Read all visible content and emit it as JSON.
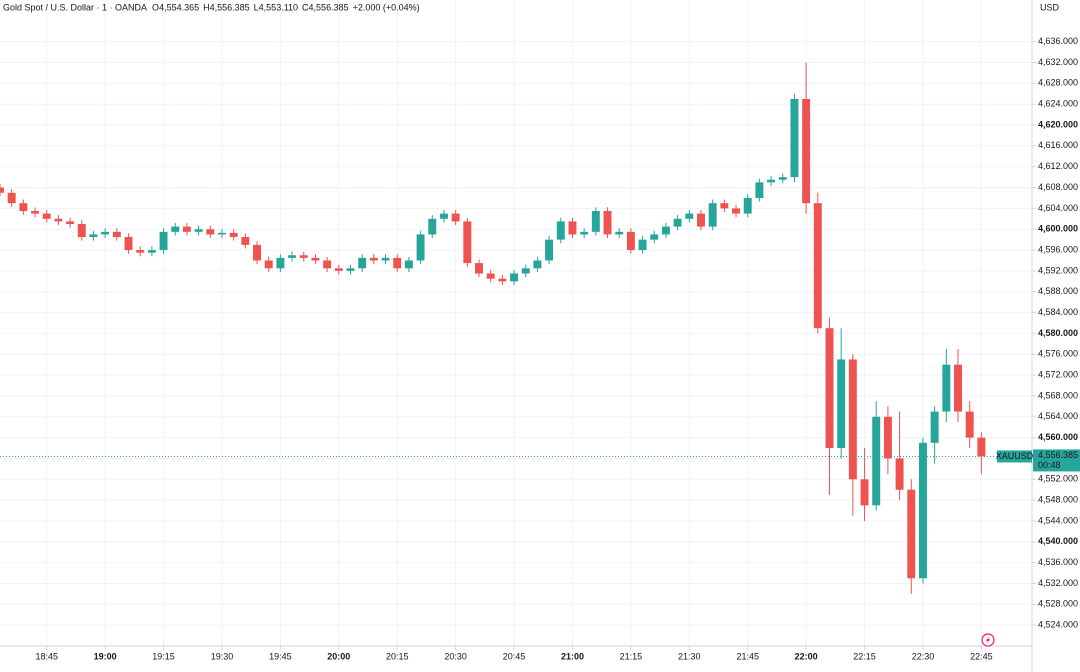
{
  "chart_data": {
    "type": "candlestick",
    "legend": {
      "symbol": "Gold Spot / U.S. Dollar · 1 · OANDA",
      "open_label": "O",
      "open": "4,554.365",
      "high_label": "H",
      "high": "4,556.385",
      "low_label": "L",
      "low": "4,553.110",
      "close_label": "C",
      "close": "4,556.385",
      "change": "+2.000 (+0.04%)"
    },
    "currency": "USD",
    "price_tag": {
      "symbol": "XAUUSD",
      "price": 4556.385,
      "price_label": "4,556.385",
      "countdown": "00:48"
    },
    "up_color": "#26a69a",
    "down_color": "#ef5350",
    "xlim": [
      "18:33",
      "22:58"
    ],
    "ylim": [
      4520,
      4644
    ],
    "xticks": [
      "18:45",
      "19:00",
      "19:15",
      "19:30",
      "19:45",
      "20:00",
      "20:15",
      "20:30",
      "20:45",
      "21:00",
      "21:15",
      "21:30",
      "21:45",
      "22:00",
      "22:15",
      "22:30",
      "22:45"
    ],
    "yticks": [
      {
        "value": 4524,
        "label": "4,524.000"
      },
      {
        "value": 4528,
        "label": "4,528.000"
      },
      {
        "value": 4532,
        "label": "4,532.000"
      },
      {
        "value": 4536,
        "label": "4,536.000"
      },
      {
        "value": 4540,
        "label": "4,540.000"
      },
      {
        "value": 4544,
        "label": "4,544.000"
      },
      {
        "value": 4548,
        "label": "4,548.000"
      },
      {
        "value": 4552,
        "label": "4,552.000"
      },
      {
        "value": 4556,
        "label": "4,556.000"
      },
      {
        "value": 4560,
        "label": "4,560.000"
      },
      {
        "value": 4564,
        "label": "4,564.000"
      },
      {
        "value": 4568,
        "label": "4,568.000"
      },
      {
        "value": 4572,
        "label": "4,572.000"
      },
      {
        "value": 4576,
        "label": "4,576.000"
      },
      {
        "value": 4580,
        "label": "4,580.000"
      },
      {
        "value": 4584,
        "label": "4,584.000"
      },
      {
        "value": 4588,
        "label": "4,588.000"
      },
      {
        "value": 4592,
        "label": "4,592.000"
      },
      {
        "value": 4596,
        "label": "4,596.000"
      },
      {
        "value": 4600,
        "label": "4,600.000"
      },
      {
        "value": 4604,
        "label": "4,604.000"
      },
      {
        "value": 4608,
        "label": "4,608.000"
      },
      {
        "value": 4612,
        "label": "4,612.000"
      },
      {
        "value": 4616,
        "label": "4,616.000"
      },
      {
        "value": 4620,
        "label": "4,620.000"
      },
      {
        "value": 4624,
        "label": "4,624.000"
      },
      {
        "value": 4628,
        "label": "4,628.000"
      },
      {
        "value": 4632,
        "label": "4,632.000"
      },
      {
        "value": 4636,
        "label": "4,636.000"
      }
    ],
    "grid": true,
    "x": [
      "18:33",
      "18:36",
      "18:39",
      "18:42",
      "18:45",
      "18:48",
      "18:51",
      "18:54",
      "18:57",
      "19:00",
      "19:03",
      "19:06",
      "19:09",
      "19:12",
      "19:15",
      "19:18",
      "19:21",
      "19:24",
      "19:27",
      "19:30",
      "19:33",
      "19:36",
      "19:39",
      "19:42",
      "19:45",
      "19:48",
      "19:51",
      "19:54",
      "19:57",
      "20:00",
      "20:03",
      "20:06",
      "20:09",
      "20:12",
      "20:15",
      "20:18",
      "20:21",
      "20:24",
      "20:27",
      "20:30",
      "20:33",
      "20:36",
      "20:39",
      "20:42",
      "20:45",
      "20:48",
      "20:51",
      "20:54",
      "20:57",
      "21:00",
      "21:03",
      "21:06",
      "21:09",
      "21:12",
      "21:15",
      "21:18",
      "21:21",
      "21:24",
      "21:27",
      "21:30",
      "21:33",
      "21:36",
      "21:39",
      "21:42",
      "21:45",
      "21:48",
      "21:51",
      "21:54",
      "21:57",
      "22:00",
      "22:03",
      "22:06",
      "22:09",
      "22:12",
      "22:15",
      "22:18",
      "22:21",
      "22:24",
      "22:27",
      "22:30",
      "22:33",
      "22:36",
      "22:39",
      "22:42",
      "22:45"
    ],
    "open": [
      4608,
      4607,
      4605,
      4603.5,
      4603,
      4602,
      4601.5,
      4601,
      4598.5,
      4599,
      4599.5,
      4598.5,
      4596,
      4595.5,
      4596,
      4599.5,
      4600.5,
      4599.5,
      4600,
      4599,
      4599.3,
      4598.5,
      4597,
      4594,
      4592.5,
      4594.5,
      4595,
      4594.5,
      4594,
      4592.5,
      4592,
      4592.5,
      4594.5,
      4594,
      4594.5,
      4592.5,
      4594,
      4599,
      4602,
      4603,
      4601.5,
      4593.5,
      4591.5,
      4590.5,
      4590,
      4591.5,
      4592.5,
      4594,
      4598,
      4601.5,
      4599,
      4599.5,
      4603.5,
      4599,
      4599.5,
      4596,
      4598,
      4599,
      4600.5,
      4602,
      4603,
      4600.5,
      4605,
      4604,
      4603,
      4606,
      4609,
      4609.5,
      4610,
      4625,
      4605,
      4581,
      4558,
      4575,
      4552,
      4547,
      4564,
      4556,
      4550,
      4533,
      4559,
      4565,
      4574,
      4565,
      4560
    ],
    "high": [
      4608.7,
      4607.7,
      4605.7,
      4604.2,
      4603.7,
      4602.7,
      4602.2,
      4601.7,
      4599.7,
      4600.2,
      4600.2,
      4599.2,
      4596.7,
      4596.7,
      4600.2,
      4601.2,
      4601.2,
      4600.7,
      4600.7,
      4600,
      4600,
      4599.2,
      4597.7,
      4594.7,
      4595.2,
      4595.7,
      4595.7,
      4595.2,
      4594.7,
      4593.2,
      4593.2,
      4595.2,
      4595.2,
      4595.2,
      4595.2,
      4594.7,
      4599.7,
      4602.7,
      4603.7,
      4603.7,
      4602.2,
      4594.2,
      4592.2,
      4591.2,
      4592.2,
      4593.2,
      4594.7,
      4598.7,
      4602.2,
      4602.2,
      4600.2,
      4604.2,
      4604.2,
      4600.2,
      4600.2,
      4598.7,
      4599.7,
      4601.2,
      4602.7,
      4603.7,
      4603.7,
      4605.7,
      4605.7,
      4604.7,
      4606.7,
      4609.7,
      4610.2,
      4610.7,
      4626,
      4632,
      4607,
      4583,
      4581,
      4576,
      4558,
      4567,
      4566,
      4565,
      4552,
      4560,
      4566,
      4577,
      4577,
      4567,
      4561
    ],
    "low": [
      4606.3,
      4604.3,
      4602.8,
      4602.3,
      4601.3,
      4600.8,
      4600.3,
      4597.8,
      4597.8,
      4598.3,
      4597.8,
      4595.3,
      4594.8,
      4594.8,
      4595.3,
      4598.8,
      4598.8,
      4598.8,
      4598.3,
      4598.3,
      4597.8,
      4596.3,
      4593.3,
      4591.8,
      4591.8,
      4593.8,
      4593.8,
      4593.3,
      4591.8,
      4591.3,
      4591.3,
      4591.8,
      4593.3,
      4593.3,
      4591.8,
      4591.8,
      4593.3,
      4598.3,
      4601.3,
      4600.8,
      4592.8,
      4590.8,
      4589.8,
      4589.3,
      4589.3,
      4590.8,
      4591.8,
      4593.3,
      4597.3,
      4598.3,
      4598.3,
      4598.8,
      4598.3,
      4598.3,
      4595.3,
      4595.3,
      4597.3,
      4598.3,
      4599.8,
      4601.3,
      4599.8,
      4599.8,
      4603.3,
      4602.3,
      4602.3,
      4605.3,
      4608.3,
      4608.8,
      4609,
      4603,
      4580,
      4549,
      4556,
      4545,
      4544,
      4546,
      4553,
      4548,
      4530,
      4532,
      4555,
      4563,
      4563,
      4558,
      4553
    ],
    "close": [
      4607,
      4605,
      4603.5,
      4603,
      4602,
      4601.5,
      4601,
      4598.5,
      4599,
      4599.5,
      4598.5,
      4596,
      4595.5,
      4596,
      4599.5,
      4600.5,
      4599.5,
      4600,
      4599,
      4599.3,
      4598.5,
      4597,
      4594,
      4592.5,
      4594.5,
      4595,
      4594.5,
      4594,
      4592.5,
      4592,
      4592.5,
      4594.5,
      4594,
      4594.5,
      4592.5,
      4594,
      4599,
      4602,
      4603,
      4601.5,
      4593.5,
      4591.5,
      4590.5,
      4590,
      4591.5,
      4592.5,
      4594,
      4598,
      4601.5,
      4599,
      4599.5,
      4603.5,
      4599,
      4599.5,
      4596,
      4598,
      4599,
      4600.5,
      4602,
      4603,
      4600.5,
      4605,
      4604,
      4603,
      4606,
      4609,
      4609.5,
      4610,
      4625,
      4605,
      4581,
      4558,
      4575,
      4552,
      4547,
      4564,
      4556,
      4550,
      4533,
      4559,
      4565,
      4574,
      4565,
      4560,
      4556.385
    ]
  }
}
